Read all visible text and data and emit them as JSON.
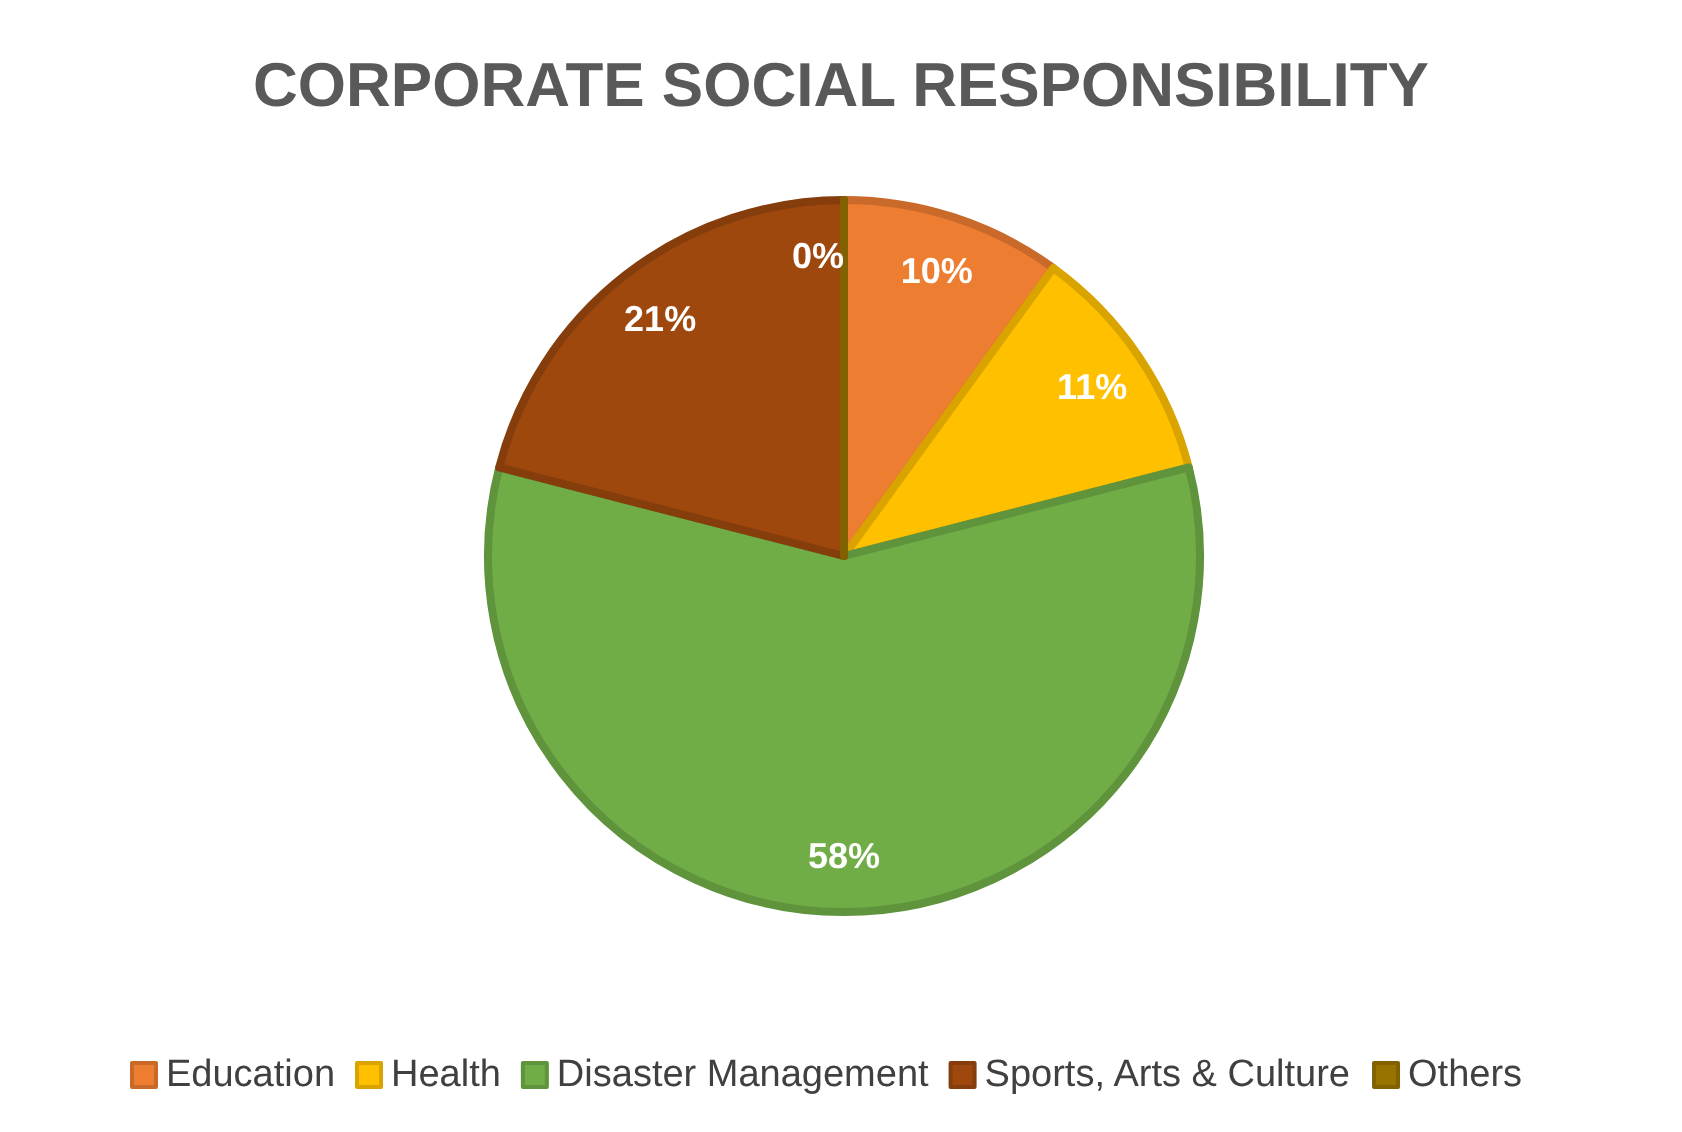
{
  "chart_data": {
    "type": "pie",
    "title": "CORPORATE SOCIAL RESPONSIBILITY",
    "categories": [
      "Education",
      "Health",
      "Disaster Management",
      "Sports, Arts & Culture",
      "Others"
    ],
    "values": [
      10,
      11,
      58,
      21,
      0
    ],
    "colors": [
      "#ed7d31",
      "#ffc000",
      "#70ad47",
      "#9e480e",
      "#997300"
    ],
    "value_labels": [
      "10%",
      "11%",
      "58%",
      "21%",
      "0%"
    ],
    "legend": "bottom"
  }
}
